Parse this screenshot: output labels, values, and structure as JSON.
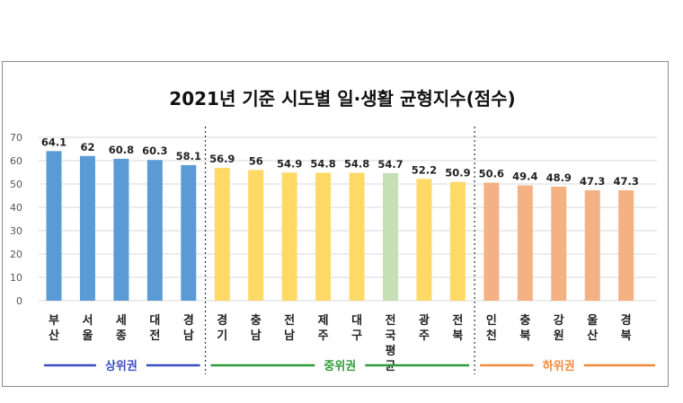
{
  "chart_data": {
    "type": "bar",
    "title": "2021년 기준 시도별 일·생활 균형지수(점수)",
    "ylim": [
      0,
      70
    ],
    "yticks": [
      0,
      10,
      20,
      30,
      40,
      50,
      60,
      70
    ],
    "grid": true,
    "categories": [
      "부산",
      "서울",
      "세종",
      "대전",
      "경남",
      "경기",
      "충남",
      "전남",
      "제주",
      "대구",
      "전국평균",
      "광주",
      "전북",
      "인천",
      "충북",
      "강원",
      "울산",
      "경북"
    ],
    "values": [
      64.1,
      62,
      60.8,
      60.3,
      58.1,
      56.9,
      56,
      54.9,
      54.8,
      54.8,
      54.7,
      52.2,
      50.9,
      50.6,
      49.4,
      48.9,
      47.3,
      47.3
    ],
    "value_labels": [
      "64.1",
      "62",
      "60.8",
      "60.3",
      "58.1",
      "56.9",
      "56",
      "54.9",
      "54.8",
      "54.8",
      "54.7",
      "52.2",
      "50.9",
      "50.6",
      "49.4",
      "48.9",
      "47.3",
      "47.3"
    ],
    "bar_colors": [
      "#5b9bd5",
      "#5b9bd5",
      "#5b9bd5",
      "#5b9bd5",
      "#5b9bd5",
      "#ffd966",
      "#ffd966",
      "#ffd966",
      "#ffd966",
      "#ffd966",
      "#c5e0b4",
      "#ffd966",
      "#ffd966",
      "#f4b183",
      "#f4b183",
      "#f4b183",
      "#f4b183",
      "#f4b183"
    ],
    "groups": [
      {
        "label": "상위권",
        "start": 0,
        "end": 4,
        "color": "#3a4dbf"
      },
      {
        "label": "중위권",
        "start": 5,
        "end": 12,
        "color": "#2e9b3a"
      },
      {
        "label": "하위권",
        "start": 13,
        "end": 17,
        "color": "#f08a3c"
      }
    ]
  }
}
